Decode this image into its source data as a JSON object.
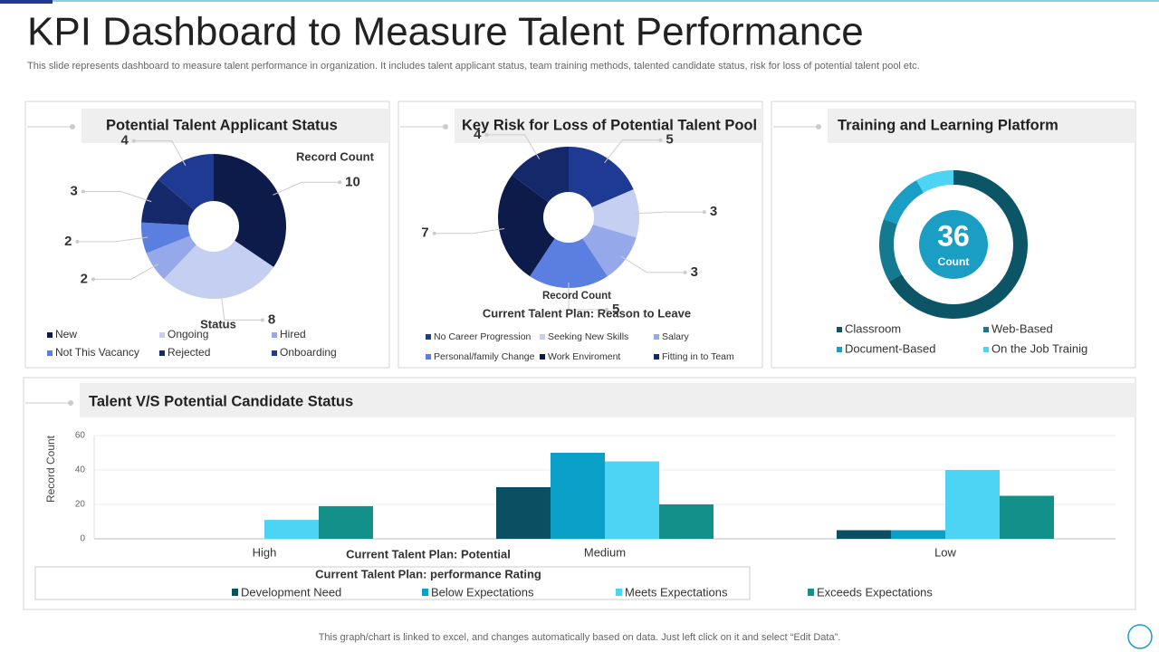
{
  "header": {
    "title": "KPI Dashboard to Measure Talent Performance",
    "subtitle": "This slide represents dashboard to measure talent performance in organization. It includes talent applicant status, team training methods, talented candidate status, risk for loss of potential talent pool etc."
  },
  "footer": "This graph/chart is linked to excel,  and changes automatically based on data. Just left click on it and select “Edit Data”.",
  "chart_data": [
    {
      "type": "pie",
      "title": "Potential Talent Applicant Status",
      "value_title": "Record Count",
      "category_title": "Status",
      "categories": [
        "New",
        "Ongoing",
        "Hired",
        "Not This Vacancy",
        "Rejected",
        "Onboarding"
      ],
      "values": [
        10,
        8,
        2,
        2,
        3,
        4
      ],
      "colors": [
        "#0d1b4b",
        "#c5cff2",
        "#95a9ea",
        "#5b7fe0",
        "#15296a",
        "#1f3a93"
      ]
    },
    {
      "type": "pie",
      "title": "Key Risk for Loss of Potential Talent Pool",
      "value_title": "Record Count",
      "category_title": "Current Talent Plan: Reason to Leave",
      "categories": [
        "No Career Progression",
        "Seeking New Skills",
        "Salary",
        "Personal/family Change",
        "Work Enviroment",
        "Fitting in to Team"
      ],
      "values": [
        5,
        3,
        3,
        5,
        7,
        4
      ],
      "colors": [
        "#1f3a93",
        "#c5cff2",
        "#95a9ea",
        "#5b7fe0",
        "#0d1b4b",
        "#15296a"
      ]
    },
    {
      "type": "donut",
      "title": "Training and Learning Platform",
      "center_value": 36,
      "center_label": "Count",
      "categories": [
        "Classroom",
        "Web-Based",
        "Document-Based",
        "On the Job Trainig"
      ],
      "values": [
        24,
        5,
        4,
        3
      ],
      "colors": [
        "#0b5566",
        "#137a90",
        "#1a9ec4",
        "#4dd4f4"
      ]
    },
    {
      "type": "bar",
      "title": "Talent V/S Potential Candidate Status",
      "ylabel": "Record Count",
      "xlabel": "Current Talent Plan: Potential",
      "legend_title": "Current Talent Plan: performance Rating",
      "categories": [
        "High",
        "Medium",
        "Low"
      ],
      "series": [
        {
          "name": "Development Need",
          "color": "#0b4f63",
          "values": [
            0,
            30,
            5
          ]
        },
        {
          "name": "Below Expectations",
          "color": "#0aa0c8",
          "values": [
            0,
            50,
            5
          ]
        },
        {
          "name": "Meets Expectations",
          "color": "#4dd4f4",
          "values": [
            11,
            45,
            40
          ]
        },
        {
          "name": "Exceeds Expectations",
          "color": "#13908a",
          "values": [
            19,
            20,
            25
          ]
        }
      ],
      "ylim": [
        0,
        60
      ],
      "yticks": [
        0,
        20,
        40,
        60
      ],
      "grid": true
    }
  ]
}
